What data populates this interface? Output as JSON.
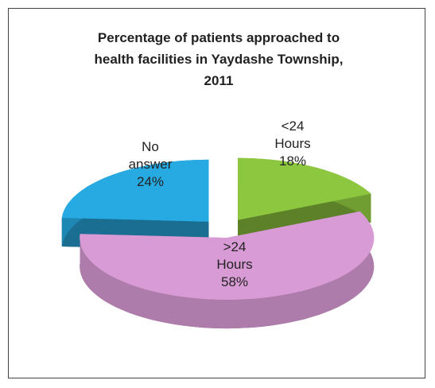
{
  "chart_data": {
    "type": "pie",
    "title": "Percentage of patients approached to health facilities in Yaydashe Township, 2011",
    "categories": [
      "<24 Hours",
      ">24 Hours",
      "No answer"
    ],
    "values": [
      18,
      58,
      24
    ],
    "value_labels": [
      "18%",
      "58%",
      "24%"
    ],
    "colors": [
      "#8dc63f",
      "#d99bd5",
      "#27a9e1"
    ],
    "three_d": true,
    "exploded": true
  }
}
